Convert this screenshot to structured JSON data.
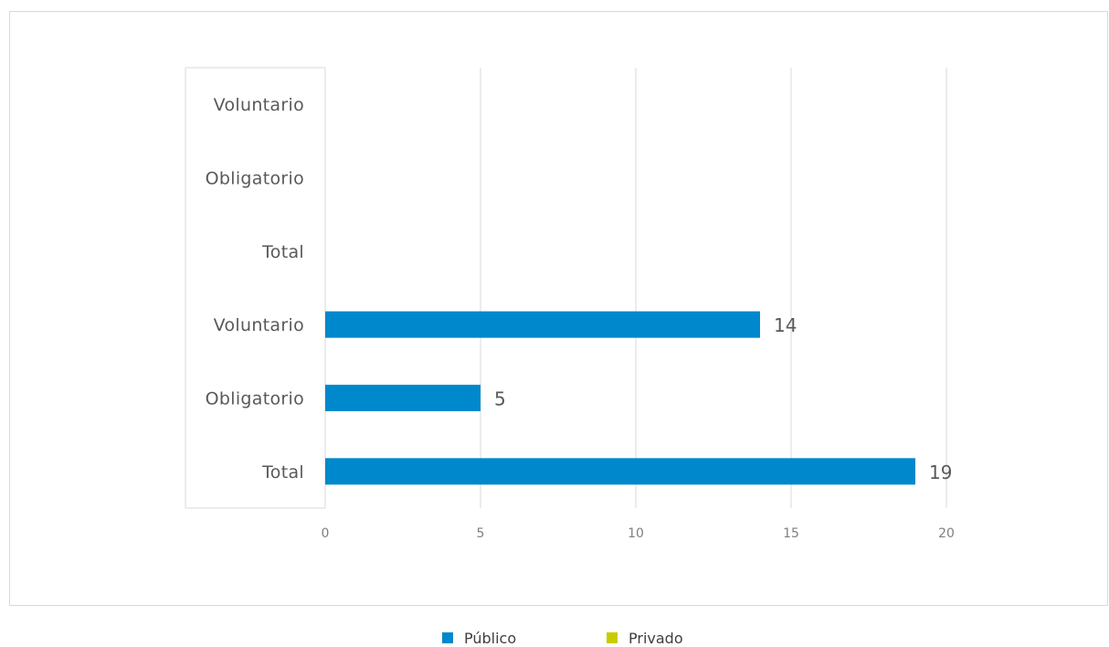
{
  "chart_data": {
    "type": "bar",
    "orientation": "horizontal",
    "groups": [
      {
        "categories": [
          "Total",
          "Obligatorio",
          "Voluntario"
        ]
      },
      {
        "categories": [
          "Total",
          "Obligatorio",
          "Voluntario"
        ]
      }
    ],
    "categories": [
      "Total",
      "Obligatorio",
      "Voluntario",
      "Total",
      "Obligatorio",
      "Voluntario"
    ],
    "series": [
      {
        "name": "Público",
        "color": "#0088CC",
        "values": [
          19,
          5,
          14,
          null,
          null,
          null
        ]
      },
      {
        "name": "Privado",
        "color": "#C8CC00",
        "values": [
          null,
          null,
          null,
          null,
          null,
          null
        ]
      }
    ],
    "data_labels": [
      "19",
      "5",
      "14"
    ],
    "xlim": [
      0,
      20
    ],
    "xticks": [
      "0",
      "5",
      "10",
      "15",
      "20"
    ],
    "grid": true,
    "legend_position": "bottom",
    "title": "",
    "xlabel": "",
    "ylabel": ""
  }
}
